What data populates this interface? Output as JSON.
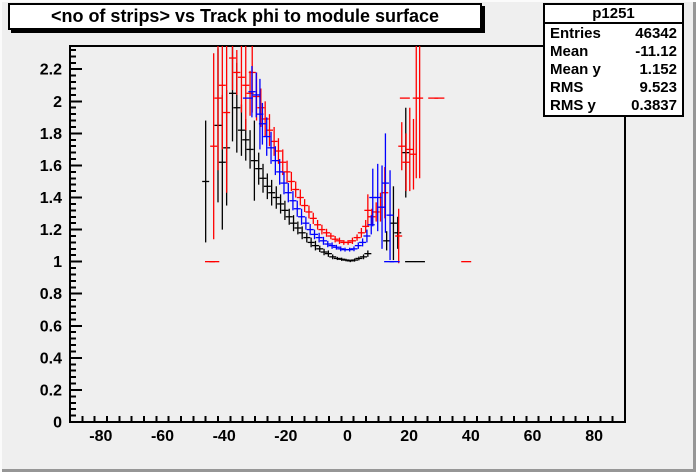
{
  "title_box": {
    "text": "<no of strips> vs Track phi to module surface"
  },
  "stats_box": {
    "title": "p1251",
    "rows": [
      {
        "label": "Entries",
        "value": "46342"
      },
      {
        "label": "Mean",
        "value": "-11.12"
      },
      {
        "label": "Mean y",
        "value": "1.152"
      },
      {
        "label": "RMS",
        "value": "9.523"
      },
      {
        "label": "RMS y",
        "value": "0.3837"
      }
    ]
  },
  "chart_data": {
    "type": "scatter",
    "style": "profile-errorbars",
    "title": "<no of strips> vs Track phi to module surface",
    "xlabel": "",
    "ylabel": "",
    "xlim": [
      -90,
      90
    ],
    "ylim": [
      0,
      2.345
    ],
    "grid": false,
    "legend": false,
    "x_ticks": {
      "values": [
        -80,
        -60,
        -40,
        -20,
        0,
        20,
        40,
        60,
        80
      ],
      "labels": [
        "-80",
        "-60",
        "-40",
        "-20",
        "0",
        "20",
        "40",
        "60",
        "80"
      ],
      "minor_step": 4
    },
    "y_ticks": {
      "values": [
        0,
        0.2,
        0.4,
        0.6,
        0.8,
        1.0,
        1.2,
        1.4,
        1.6,
        1.8,
        2.0,
        2.2
      ],
      "labels": [
        "0",
        "0.2",
        "0.4",
        "0.6",
        "0.8",
        "1",
        "1.2",
        "1.4",
        "1.6",
        "1.8",
        "2",
        "2.2"
      ],
      "minor_step": 0.04
    },
    "series": [
      {
        "name": "module-a-black",
        "color": "#000000",
        "points": [
          [
            -46.0,
            1.5,
            0.38
          ],
          [
            -42.0,
            1.85,
            0.48
          ],
          [
            -40.6,
            1.62,
            0.42
          ],
          [
            -39.2,
            1.71,
            0.36
          ],
          [
            -37.3,
            2.05,
            0.3
          ],
          [
            -35.9,
            1.96,
            0.28
          ],
          [
            -34.4,
            1.82,
            0.16
          ],
          [
            -33.0,
            1.76,
            0.13
          ],
          [
            -31.6,
            1.7,
            0.12
          ],
          [
            -30.2,
            1.63,
            0.25
          ],
          [
            -28.8,
            1.58,
            0.1
          ],
          [
            -27.4,
            1.52,
            0.09
          ],
          [
            -26.0,
            1.47,
            0.08
          ],
          [
            -24.6,
            1.43,
            0.08
          ],
          [
            -23.1,
            1.4,
            0.07
          ],
          [
            -21.7,
            1.36,
            0.06
          ],
          [
            -20.3,
            1.32,
            0.06
          ],
          [
            -18.9,
            1.28,
            0.05
          ],
          [
            -17.5,
            1.24,
            0.05
          ],
          [
            -16.1,
            1.21,
            0.04
          ],
          [
            -14.7,
            1.18,
            0.04
          ],
          [
            -13.2,
            1.15,
            0.03
          ],
          [
            -11.8,
            1.12,
            0.03
          ],
          [
            -10.4,
            1.1,
            0.03
          ],
          [
            -9.0,
            1.08,
            0.02
          ],
          [
            -7.6,
            1.06,
            0.02
          ],
          [
            -6.2,
            1.05,
            0.02
          ],
          [
            -4.8,
            1.03,
            0.015
          ],
          [
            -3.3,
            1.02,
            0.01
          ],
          [
            -1.9,
            1.015,
            0.01
          ],
          [
            -0.5,
            1.01,
            0.008
          ],
          [
            0.9,
            1.005,
            0.008
          ],
          [
            2.3,
            1.01,
            0.01
          ],
          [
            3.7,
            1.02,
            0.012
          ],
          [
            5.2,
            1.03,
            0.015
          ],
          [
            6.6,
            1.05,
            0.02
          ],
          [
            12.7,
            1.13,
            0.06
          ],
          [
            14.9,
            1.24,
            0.23
          ],
          [
            16.3,
            1.18,
            0.1
          ],
          [
            18.9,
            1.68,
            0.28
          ],
          [
            20.3,
            1.0,
            0
          ],
          [
            23.5,
            1.0,
            0
          ]
        ]
      },
      {
        "name": "module-b-red",
        "color": "#ff0000",
        "points": [
          [
            -44.6,
            1.0,
            0
          ],
          [
            -43.2,
            1.0,
            0
          ],
          [
            -43.4,
            1.72,
            0.58
          ],
          [
            -42.0,
            2.02,
            0.45
          ],
          [
            -40.6,
            2.1,
            0.4
          ],
          [
            -39.2,
            1.93,
            0.5
          ],
          [
            -37.3,
            2.27,
            0.2
          ],
          [
            -35.9,
            2.18,
            0.14
          ],
          [
            -34.4,
            2.15,
            0.22
          ],
          [
            -33.0,
            2.1,
            0.28
          ],
          [
            -31.6,
            2.05,
            0.14
          ],
          [
            -30.9,
            2.18,
            0.25
          ],
          [
            -29.5,
            2.03,
            0.15
          ],
          [
            -28.1,
            1.96,
            0.12
          ],
          [
            -26.7,
            1.89,
            0.11
          ],
          [
            -25.3,
            1.82,
            0.1
          ],
          [
            -23.8,
            1.75,
            0.09
          ],
          [
            -22.4,
            1.69,
            0.08
          ],
          [
            -21.0,
            1.62,
            0.08
          ],
          [
            -19.6,
            1.56,
            0.07
          ],
          [
            -18.2,
            1.5,
            0.06
          ],
          [
            -16.8,
            1.45,
            0.05
          ],
          [
            -15.3,
            1.4,
            0.05
          ],
          [
            -13.9,
            1.35,
            0.04
          ],
          [
            -12.5,
            1.31,
            0.04
          ],
          [
            -11.1,
            1.27,
            0.035
          ],
          [
            -9.7,
            1.23,
            0.03
          ],
          [
            -8.3,
            1.2,
            0.03
          ],
          [
            -6.8,
            1.18,
            0.025
          ],
          [
            -5.4,
            1.16,
            0.02
          ],
          [
            -4.0,
            1.14,
            0.02
          ],
          [
            -2.6,
            1.13,
            0.02
          ],
          [
            -1.2,
            1.12,
            0.015
          ],
          [
            0.2,
            1.12,
            0.015
          ],
          [
            1.6,
            1.13,
            0.02
          ],
          [
            3.1,
            1.15,
            0.02
          ],
          [
            4.5,
            1.18,
            0.03
          ],
          [
            5.9,
            1.22,
            0.04
          ],
          [
            6.6,
            1.32,
            0.1
          ],
          [
            7.9,
            1.28,
            0.05
          ],
          [
            9.3,
            1.31,
            0.06
          ],
          [
            10.7,
            1.34,
            0.09
          ],
          [
            12.1,
            1.43,
            0.16
          ],
          [
            16.6,
            1.16,
            0.17
          ],
          [
            17.6,
            1.72,
            0.15
          ],
          [
            19.0,
            1.62,
            0.18
          ],
          [
            20.2,
            1.7,
            0.26
          ],
          [
            21.4,
            1.67,
            0.22
          ],
          [
            18.6,
            2.02,
            0
          ],
          [
            22.3,
            2.02,
            0.5
          ],
          [
            23.4,
            2.02,
            0.5
          ],
          [
            27.8,
            2.02,
            0
          ],
          [
            29.8,
            2.02,
            0
          ],
          [
            38.5,
            1.0,
            0
          ]
        ]
      },
      {
        "name": "module-c-blue",
        "color": "#0000ff",
        "points": [
          [
            -32.3,
            2.02,
            0
          ],
          [
            -31.0,
            2.06,
            0.16
          ],
          [
            -29.6,
            2.04,
            0.14
          ],
          [
            -28.4,
            1.92,
            0.22
          ],
          [
            -27.6,
            1.86,
            0.13
          ],
          [
            -26.2,
            1.78,
            0.12
          ],
          [
            -24.8,
            1.71,
            0.1
          ],
          [
            -23.4,
            1.63,
            0.09
          ],
          [
            -22.0,
            1.56,
            0.08
          ],
          [
            -20.6,
            1.49,
            0.07
          ],
          [
            -19.2,
            1.43,
            0.06
          ],
          [
            -17.7,
            1.38,
            0.06
          ],
          [
            -16.3,
            1.33,
            0.05
          ],
          [
            -14.9,
            1.28,
            0.05
          ],
          [
            -13.5,
            1.24,
            0.04
          ],
          [
            -12.1,
            1.2,
            0.035
          ],
          [
            -10.7,
            1.17,
            0.03
          ],
          [
            -9.2,
            1.15,
            0.03
          ],
          [
            -7.8,
            1.13,
            0.025
          ],
          [
            -6.4,
            1.11,
            0.02
          ],
          [
            -5.0,
            1.1,
            0.02
          ],
          [
            -3.6,
            1.09,
            0.015
          ],
          [
            -2.2,
            1.08,
            0.015
          ],
          [
            -0.8,
            1.075,
            0.012
          ],
          [
            0.7,
            1.075,
            0.012
          ],
          [
            2.1,
            1.08,
            0.015
          ],
          [
            3.5,
            1.1,
            0.02
          ],
          [
            4.9,
            1.12,
            0.025
          ],
          [
            6.3,
            1.16,
            0.04
          ],
          [
            7.7,
            1.23,
            0.06
          ],
          [
            8.2,
            1.4,
            0.18
          ],
          [
            9.8,
            1.4,
            0.21
          ],
          [
            11.2,
            1.34,
            0.26
          ],
          [
            12.3,
            1.49,
            0.31
          ],
          [
            13.8,
            1.29,
            0.28
          ],
          [
            13.5,
            1.0,
            0
          ],
          [
            15.3,
            1.0,
            0
          ]
        ]
      }
    ]
  }
}
